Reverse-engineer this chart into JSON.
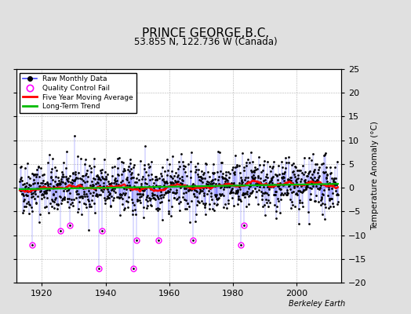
{
  "title": "PRINCE GEORGE,B.C.",
  "subtitle": "53.855 N, 122.736 W (Canada)",
  "ylabel": "Temperature Anomaly (°C)",
  "watermark": "Berkeley Earth",
  "xlim": [
    1912,
    2014
  ],
  "ylim": [
    -20,
    25
  ],
  "yticks": [
    -20,
    -15,
    -10,
    -5,
    0,
    5,
    10,
    15,
    20,
    25
  ],
  "xticks": [
    1920,
    1940,
    1960,
    1980,
    2000
  ],
  "bg_color": "#e0e0e0",
  "plot_bg_color": "#ffffff",
  "grid_color": "#b0b0b0",
  "seed": 42,
  "start_year": 1913,
  "end_year": 2013,
  "raw_color": "#4444ff",
  "raw_marker_color": "black",
  "moving_avg_color": "red",
  "trend_color": "#00bb00",
  "qc_fail_color": "magenta",
  "legend_entries": [
    "Raw Monthly Data",
    "Quality Control Fail",
    "Five Year Moving Average",
    "Long-Term Trend"
  ]
}
